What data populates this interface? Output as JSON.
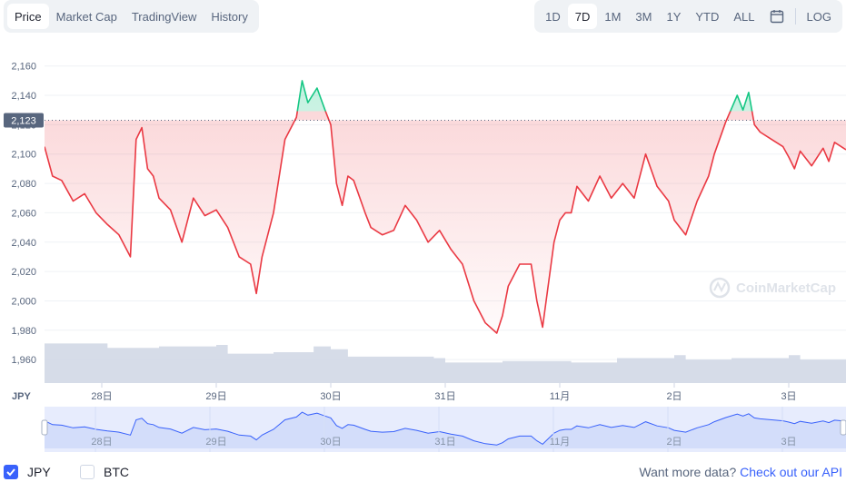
{
  "tabs": [
    {
      "label": "Price",
      "active": true
    },
    {
      "label": "Market Cap",
      "active": false
    },
    {
      "label": "TradingView",
      "active": false
    },
    {
      "label": "History",
      "active": false
    }
  ],
  "ranges": [
    {
      "label": "1D",
      "active": false
    },
    {
      "label": "7D",
      "active": true
    },
    {
      "label": "1M",
      "active": false
    },
    {
      "label": "3M",
      "active": false
    },
    {
      "label": "1Y",
      "active": false
    },
    {
      "label": "YTD",
      "active": false
    },
    {
      "label": "ALL",
      "active": false
    }
  ],
  "log_label": "LOG",
  "watermark": "CoinMarketCap",
  "currency_label": "JPY",
  "current_price_label": "2,123",
  "legend": {
    "jpy": "JPY",
    "btc": "BTC"
  },
  "api": {
    "prefix": "Want more data?",
    "link": "Check out our API"
  },
  "colors": {
    "up": "#16c784",
    "down": "#ea3943",
    "volume": "#cfd6e4",
    "navigator": "#e7ecfd",
    "accent": "#3861fb"
  },
  "chart_data": {
    "type": "line",
    "y_ticks": [
      "2,160",
      "2,140",
      "2,120",
      "2,100",
      "2,080",
      "2,060",
      "2,040",
      "2,020",
      "2,000",
      "1,980",
      "1,960"
    ],
    "ylim": [
      1944,
      2166
    ],
    "reference_price": 2123,
    "x_tick_labels": [
      "28日",
      "29日",
      "30日",
      "31日",
      "11月",
      "2日",
      "3日"
    ],
    "x_tick_pos": [
      0.5,
      1.5,
      2.5,
      3.5,
      4.5,
      5.5,
      6.5
    ],
    "x_range": [
      0.0,
      7.0
    ],
    "price_x": [
      0.0,
      0.07,
      0.15,
      0.25,
      0.35,
      0.45,
      0.55,
      0.65,
      0.75,
      0.8,
      0.85,
      0.9,
      0.95,
      1.0,
      1.1,
      1.2,
      1.3,
      1.4,
      1.5,
      1.6,
      1.7,
      1.8,
      1.85,
      1.9,
      2.0,
      2.1,
      2.2,
      2.25,
      2.3,
      2.38,
      2.45,
      2.5,
      2.55,
      2.6,
      2.65,
      2.7,
      2.8,
      2.85,
      2.95,
      3.05,
      3.15,
      3.25,
      3.35,
      3.45,
      3.55,
      3.65,
      3.75,
      3.85,
      3.95,
      4.0,
      4.05,
      4.15,
      4.25,
      4.3,
      4.35,
      4.45,
      4.5,
      4.55,
      4.6,
      4.65,
      4.75,
      4.85,
      4.95,
      5.05,
      5.15,
      5.25,
      5.35,
      5.45,
      5.5,
      5.55,
      5.6,
      5.7,
      5.8,
      5.85,
      5.95,
      6.05,
      6.1,
      6.15,
      6.2,
      6.25,
      6.35,
      6.45,
      6.5,
      6.55,
      6.6,
      6.7,
      6.8,
      6.85,
      6.9,
      7.0
    ],
    "price_y": [
      2105,
      2085,
      2082,
      2068,
      2073,
      2060,
      2052,
      2045,
      2030,
      2110,
      2118,
      2090,
      2085,
      2070,
      2062,
      2040,
      2070,
      2058,
      2062,
      2050,
      2030,
      2025,
      2005,
      2030,
      2060,
      2110,
      2125,
      2150,
      2135,
      2145,
      2130,
      2120,
      2080,
      2065,
      2085,
      2082,
      2060,
      2050,
      2045,
      2048,
      2065,
      2055,
      2040,
      2048,
      2035,
      2025,
      2000,
      1985,
      1978,
      1990,
      2010,
      2025,
      2025,
      2000,
      1982,
      2040,
      2055,
      2060,
      2060,
      2078,
      2068,
      2085,
      2070,
      2080,
      2070,
      2100,
      2078,
      2068,
      2055,
      2050,
      2045,
      2068,
      2085,
      2100,
      2122,
      2140,
      2130,
      2142,
      2120,
      2115,
      2110,
      2105,
      2098,
      2090,
      2102,
      2092,
      2104,
      2095,
      2108,
      2103
    ],
    "volume_x": [
      0.0,
      0.5,
      0.55,
      1.0,
      1.5,
      1.6,
      2.0,
      2.35,
      2.5,
      2.65,
      3.0,
      3.4,
      3.5,
      4.0,
      4.5,
      4.6,
      5.0,
      5.5,
      5.6,
      6.0,
      6.5,
      6.6,
      7.0
    ],
    "volume_y": [
      1971,
      1971,
      1968,
      1969,
      1970,
      1964,
      1965,
      1969,
      1967,
      1962,
      1962,
      1961,
      1958,
      1959,
      1959,
      1958,
      1961,
      1963,
      1960,
      1961,
      1963,
      1960,
      1960
    ]
  }
}
